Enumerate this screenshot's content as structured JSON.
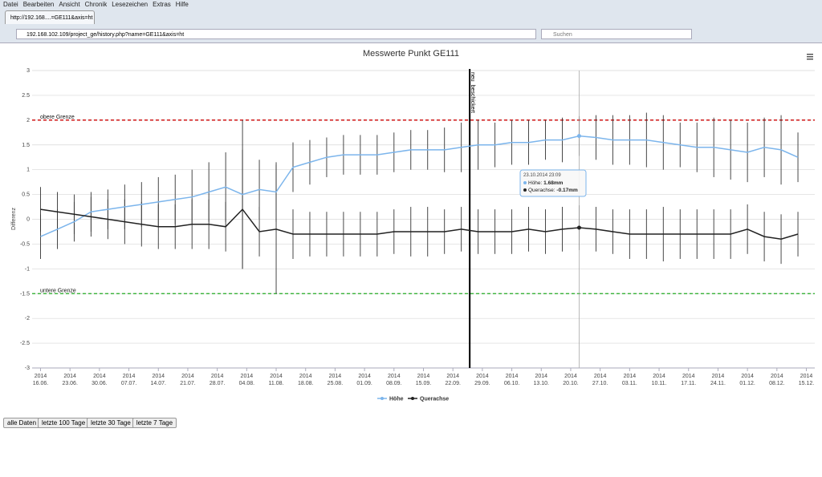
{
  "browser": {
    "menu": [
      "Datei",
      "Bearbeiten",
      "Ansicht",
      "Chronik",
      "Lesezeichen",
      "Extras",
      "Hilfe"
    ],
    "tab": "http://192.168....=GE111&axis=ht",
    "url": "192.168.102.109/project_ge/history.php?name=GE111&axis=ht",
    "search": "Suchen"
  },
  "buttons": [
    "alle Daten",
    "letzte 100 Tage",
    "letzte 30 Tage",
    "letzte 7 Tage"
  ],
  "chart_data": {
    "type": "errorline",
    "title": "Messwerte Punkt GE111",
    "y_label": "Differenz",
    "x": [
      "2014-06-16",
      "2014-06-20",
      "2014-06-24",
      "2014-06-28",
      "2014-07-02",
      "2014-07-06",
      "2014-07-10",
      "2014-07-14",
      "2014-07-18",
      "2014-07-22",
      "2014-07-26",
      "2014-07-30",
      "2014-08-03",
      "2014-08-07",
      "2014-08-11",
      "2014-08-15",
      "2014-08-19",
      "2014-08-23",
      "2014-08-27",
      "2014-08-31",
      "2014-09-04",
      "2014-09-08",
      "2014-09-12",
      "2014-09-16",
      "2014-09-20",
      "2014-09-24",
      "2014-09-28",
      "2014-10-02",
      "2014-10-06",
      "2014-10-10",
      "2014-10-14",
      "2014-10-18",
      "2014-10-22",
      "2014-10-26",
      "2014-10-30",
      "2014-11-03",
      "2014-11-07",
      "2014-11-11",
      "2014-11-15",
      "2014-11-19",
      "2014-11-23",
      "2014-11-27",
      "2014-12-01",
      "2014-12-05",
      "2014-12-09",
      "2014-12-13"
    ],
    "series": [
      {
        "name": "Höhe",
        "color": "#7cb5ec",
        "values": [
          -0.35,
          -0.2,
          -0.05,
          0.15,
          0.2,
          0.25,
          0.3,
          0.35,
          0.4,
          0.45,
          0.55,
          0.65,
          0.5,
          0.6,
          0.55,
          1.05,
          1.15,
          1.25,
          1.3,
          1.3,
          1.3,
          1.35,
          1.4,
          1.4,
          1.4,
          1.45,
          1.5,
          1.5,
          1.55,
          1.55,
          1.6,
          1.6,
          1.68,
          1.65,
          1.6,
          1.6,
          1.6,
          1.55,
          1.5,
          1.45,
          1.45,
          1.4,
          1.35,
          1.45,
          1.4,
          1.25
        ],
        "errors": [
          0.45,
          0.4,
          0.4,
          0.4,
          0.4,
          0.45,
          0.45,
          0.5,
          0.5,
          0.55,
          0.6,
          0.7,
          1.5,
          0.6,
          0.6,
          0.5,
          0.45,
          0.4,
          0.4,
          0.4,
          0.4,
          0.4,
          0.4,
          0.4,
          0.45,
          0.5,
          0.5,
          0.45,
          0.45,
          0.45,
          0.4,
          0.45,
          0.4,
          0.45,
          0.5,
          0.5,
          0.55,
          0.55,
          0.45,
          0.5,
          0.6,
          0.6,
          0.6,
          0.6,
          0.7,
          0.5
        ]
      },
      {
        "name": "Querachse",
        "color": "#222222",
        "values": [
          0.2,
          0.15,
          0.1,
          0.05,
          0,
          -0.05,
          -0.1,
          -0.15,
          -0.15,
          -0.1,
          -0.1,
          -0.15,
          0.2,
          -0.25,
          -0.2,
          -0.3,
          -0.3,
          -0.3,
          -0.3,
          -0.3,
          -0.3,
          -0.25,
          -0.25,
          -0.25,
          -0.25,
          -0.2,
          -0.25,
          -0.25,
          -0.25,
          -0.2,
          -0.25,
          -0.2,
          -0.17,
          -0.2,
          -0.25,
          -0.3,
          -0.3,
          -0.3,
          -0.3,
          -0.3,
          -0.3,
          -0.3,
          -0.2,
          -0.35,
          -0.4,
          -0.3
        ],
        "errors": [
          0.45,
          0.4,
          0.4,
          0.4,
          0.4,
          0.45,
          0.45,
          0.45,
          0.45,
          0.5,
          0.5,
          0.5,
          1.2,
          0.5,
          1.3,
          0.5,
          0.45,
          0.45,
          0.45,
          0.45,
          0.45,
          0.45,
          0.5,
          0.5,
          0.45,
          0.45,
          0.45,
          0.45,
          0.45,
          0.45,
          0.45,
          0.45,
          0.45,
          0.45,
          0.45,
          0.5,
          0.5,
          0.55,
          0.5,
          0.5,
          0.5,
          0.5,
          0.5,
          0.5,
          0.5,
          0.45
        ]
      }
    ],
    "xlim": [
      "2014-06-14",
      "2014-12-17"
    ],
    "xticks": [
      {
        "value": "2014-06-16",
        "label": [
          "2014",
          "16.06."
        ]
      },
      {
        "value": "2014-06-23",
        "label": [
          "2014",
          "23.06."
        ]
      },
      {
        "value": "2014-06-30",
        "label": [
          "2014",
          "30.06."
        ]
      },
      {
        "value": "2014-07-07",
        "label": [
          "2014",
          "07.07."
        ]
      },
      {
        "value": "2014-07-14",
        "label": [
          "2014",
          "14.07."
        ]
      },
      {
        "value": "2014-07-21",
        "label": [
          "2014",
          "21.07."
        ]
      },
      {
        "value": "2014-07-28",
        "label": [
          "2014",
          "28.07."
        ]
      },
      {
        "value": "2014-08-04",
        "label": [
          "2014",
          "04.08."
        ]
      },
      {
        "value": "2014-08-11",
        "label": [
          "2014",
          "11.08."
        ]
      },
      {
        "value": "2014-08-18",
        "label": [
          "2014",
          "18.08."
        ]
      },
      {
        "value": "2014-08-25",
        "label": [
          "2014",
          "25.08."
        ]
      },
      {
        "value": "2014-09-01",
        "label": [
          "2014",
          "01.09."
        ]
      },
      {
        "value": "2014-09-08",
        "label": [
          "2014",
          "08.09."
        ]
      },
      {
        "value": "2014-09-15",
        "label": [
          "2014",
          "15.09."
        ]
      },
      {
        "value": "2014-09-22",
        "label": [
          "2014",
          "22.09."
        ]
      },
      {
        "value": "2014-09-29",
        "label": [
          "2014",
          "29.09."
        ]
      },
      {
        "value": "2014-10-06",
        "label": [
          "2014",
          "06.10."
        ]
      },
      {
        "value": "2014-10-13",
        "label": [
          "2014",
          "13.10."
        ]
      },
      {
        "value": "2014-10-20",
        "label": [
          "2014",
          "20.10."
        ]
      },
      {
        "value": "2014-10-27",
        "label": [
          "2014",
          "27.10."
        ]
      },
      {
        "value": "2014-11-03",
        "label": [
          "2014",
          "03.11."
        ]
      },
      {
        "value": "2014-11-10",
        "label": [
          "2014",
          "10.11."
        ]
      },
      {
        "value": "2014-11-17",
        "label": [
          "2014",
          "17.11."
        ]
      },
      {
        "value": "2014-11-24",
        "label": [
          "2014",
          "24.11."
        ]
      },
      {
        "value": "2014-12-01",
        "label": [
          "2014",
          "01.12."
        ]
      },
      {
        "value": "2014-12-08",
        "label": [
          "2014",
          "08.12."
        ]
      },
      {
        "value": "2014-12-15",
        "label": [
          "2014",
          "15.12."
        ]
      }
    ],
    "ylim": [
      -3,
      3
    ],
    "yticks": [
      -3,
      -2.5,
      -2,
      -1.5,
      -1,
      -0.5,
      0,
      0.5,
      1,
      1.5,
      2,
      2.5,
      3
    ],
    "grid": true,
    "plot_lines": [
      {
        "value": 2,
        "label": "obere Grenze",
        "color": "#cc0000"
      },
      {
        "value": -1.5,
        "label": "untere Grenze",
        "color": "#22aa22"
      }
    ],
    "marker_line": {
      "x": "2014-09-26",
      "label": "neu_beschickert"
    },
    "tooltip": {
      "header": "23.10.2014 23:09",
      "items": [
        "1.68mm",
        "-0.17mm"
      ]
    }
  }
}
